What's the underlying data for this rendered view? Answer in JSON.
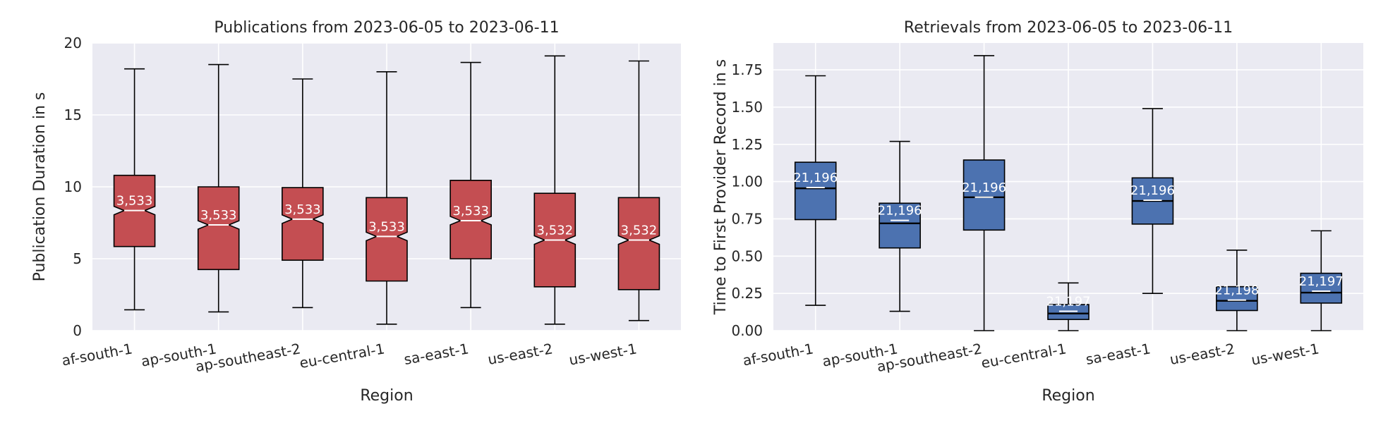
{
  "chart_data": [
    {
      "type": "box",
      "title": "Publications from 2023-06-05 to 2023-06-11",
      "xlabel": "Region",
      "ylabel": "Publication Duration in s",
      "ylim": [
        0,
        20
      ],
      "yticks": [
        0,
        5,
        10,
        15,
        20
      ],
      "ytick_labels": [
        "0",
        "5",
        "10",
        "15",
        "20"
      ],
      "box_color": "#c44e52",
      "notched": true,
      "categories": [
        "af-south-1",
        "ap-south-1",
        "ap-southeast-2",
        "eu-central-1",
        "sa-east-1",
        "us-east-2",
        "us-west-1"
      ],
      "boxes": [
        {
          "whislo": 1.45,
          "q1": 5.85,
          "med": 8.35,
          "q3": 10.8,
          "whishi": 18.2,
          "count": "3,533"
        },
        {
          "whislo": 1.3,
          "q1": 4.25,
          "med": 7.35,
          "q3": 10.0,
          "whishi": 18.5,
          "count": "3,533"
        },
        {
          "whislo": 1.6,
          "q1": 4.9,
          "med": 7.75,
          "q3": 9.95,
          "whishi": 17.5,
          "count": "3,533"
        },
        {
          "whislo": 0.45,
          "q1": 3.45,
          "med": 6.55,
          "q3": 9.25,
          "whishi": 18.0,
          "count": "3,533"
        },
        {
          "whislo": 1.6,
          "q1": 5.0,
          "med": 7.65,
          "q3": 10.45,
          "whishi": 18.65,
          "count": "3,533"
        },
        {
          "whislo": 0.45,
          "q1": 3.05,
          "med": 6.3,
          "q3": 9.55,
          "whishi": 19.1,
          "count": "3,532"
        },
        {
          "whislo": 0.7,
          "q1": 2.85,
          "med": 6.3,
          "q3": 9.25,
          "whishi": 18.75,
          "count": "3,532"
        }
      ]
    },
    {
      "type": "box",
      "title": "Retrievals from 2023-06-05 to 2023-06-11",
      "xlabel": "Region",
      "ylabel": "Time to First Provider Record in s",
      "ylim": [
        0,
        1.93
      ],
      "yticks": [
        0,
        0.25,
        0.5,
        0.75,
        1.0,
        1.25,
        1.5,
        1.75
      ],
      "ytick_labels": [
        "0.00",
        "0.25",
        "0.50",
        "0.75",
        "1.00",
        "1.25",
        "1.50",
        "1.75"
      ],
      "box_color": "#4c72b0",
      "notched": false,
      "categories": [
        "af-south-1",
        "ap-south-1",
        "ap-southeast-2",
        "eu-central-1",
        "sa-east-1",
        "us-east-2",
        "us-west-1"
      ],
      "boxes": [
        {
          "whislo": 0.17,
          "q1": 0.745,
          "med": 0.955,
          "mean": 0.96,
          "q3": 1.13,
          "whishi": 1.71,
          "count": "21,196"
        },
        {
          "whislo": 0.13,
          "q1": 0.555,
          "med": 0.72,
          "mean": 0.74,
          "q3": 0.855,
          "whishi": 1.27,
          "count": "21,196"
        },
        {
          "whislo": 0.0,
          "q1": 0.675,
          "med": 0.895,
          "mean": 0.895,
          "q3": 1.145,
          "whishi": 1.845,
          "count": "21,196"
        },
        {
          "whislo": 0.0,
          "q1": 0.075,
          "med": 0.115,
          "mean": 0.13,
          "q3": 0.175,
          "whishi": 0.32,
          "count": "21,197"
        },
        {
          "whislo": 0.25,
          "q1": 0.715,
          "med": 0.87,
          "mean": 0.875,
          "q3": 1.025,
          "whishi": 1.49,
          "count": "21,196"
        },
        {
          "whislo": 0.0,
          "q1": 0.135,
          "med": 0.2,
          "mean": 0.205,
          "q3": 0.295,
          "whishi": 0.54,
          "count": "21,198"
        },
        {
          "whislo": 0.0,
          "q1": 0.185,
          "med": 0.255,
          "mean": 0.265,
          "q3": 0.385,
          "whishi": 0.67,
          "count": "21,197"
        }
      ]
    }
  ]
}
